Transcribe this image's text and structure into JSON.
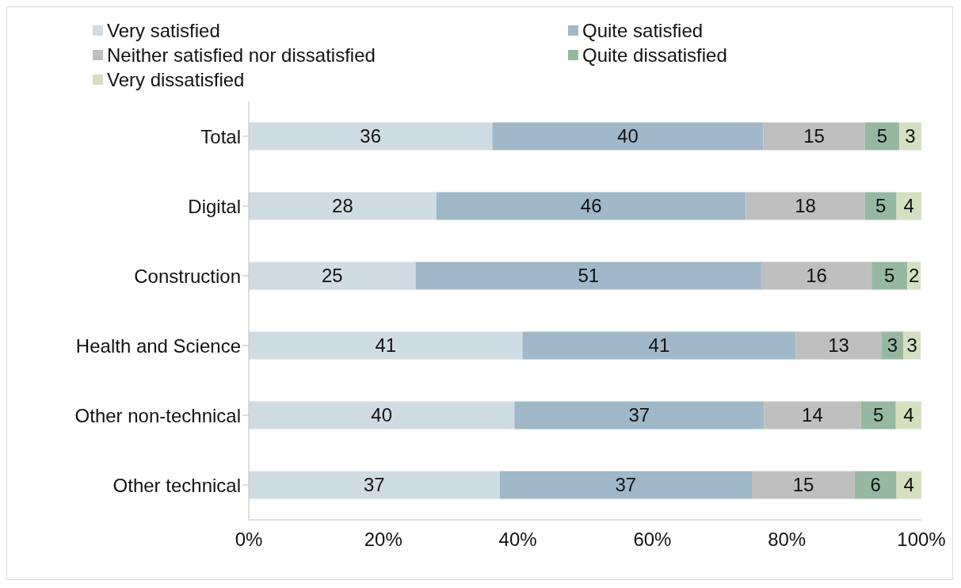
{
  "chart_data": {
    "type": "bar",
    "orientation": "horizontal",
    "stacked": true,
    "categories": [
      "Total",
      "Digital",
      "Construction",
      "Health and Science",
      "Other non-technical",
      "Other technical"
    ],
    "series": [
      {
        "name": "Very satisfied",
        "color": "#d0dce4",
        "values": [
          36.2,
          27.9,
          24.8,
          40.7,
          39.5,
          37.3
        ],
        "value_labels": [
          "36",
          "28",
          "25",
          "41",
          "40",
          "37"
        ]
      },
      {
        "name": "Quite satisfied",
        "color": "#a0b8c8",
        "values": [
          40.3,
          46.0,
          51.4,
          40.6,
          37.1,
          37.5
        ],
        "value_labels": [
          "40",
          "46",
          "51",
          "41",
          "37",
          "37"
        ]
      },
      {
        "name": "Neither satisfied nor dissatisfied",
        "color": "#bfbfbf",
        "values": [
          15.1,
          17.7,
          16.4,
          12.8,
          14.4,
          15.3
        ],
        "value_labels": [
          "15",
          "18",
          "16",
          "13",
          "14",
          "15"
        ]
      },
      {
        "name": "Quite dissatisfied",
        "color": "#97b8a0",
        "values": [
          5.1,
          4.7,
          5.3,
          3.2,
          5.2,
          6.2
        ],
        "value_labels": [
          "5",
          "5",
          "5",
          "3",
          "5",
          "6"
        ]
      },
      {
        "name": "Very dissatisfied",
        "color": "#d4e0c0",
        "values": [
          3.3,
          3.7,
          2.0,
          2.6,
          3.8,
          3.7
        ],
        "value_labels": [
          "3",
          "4",
          "2",
          "3",
          "4",
          "4"
        ]
      }
    ],
    "xlim": [
      0,
      100
    ],
    "xticks": [
      {
        "value": 0,
        "label": "0%"
      },
      {
        "value": 20,
        "label": "20%"
      },
      {
        "value": 40,
        "label": "40%"
      },
      {
        "value": 60,
        "label": "60%"
      },
      {
        "value": 80,
        "label": "80%"
      },
      {
        "value": 100,
        "label": "100%"
      }
    ],
    "grid": false,
    "legend": "top"
  }
}
